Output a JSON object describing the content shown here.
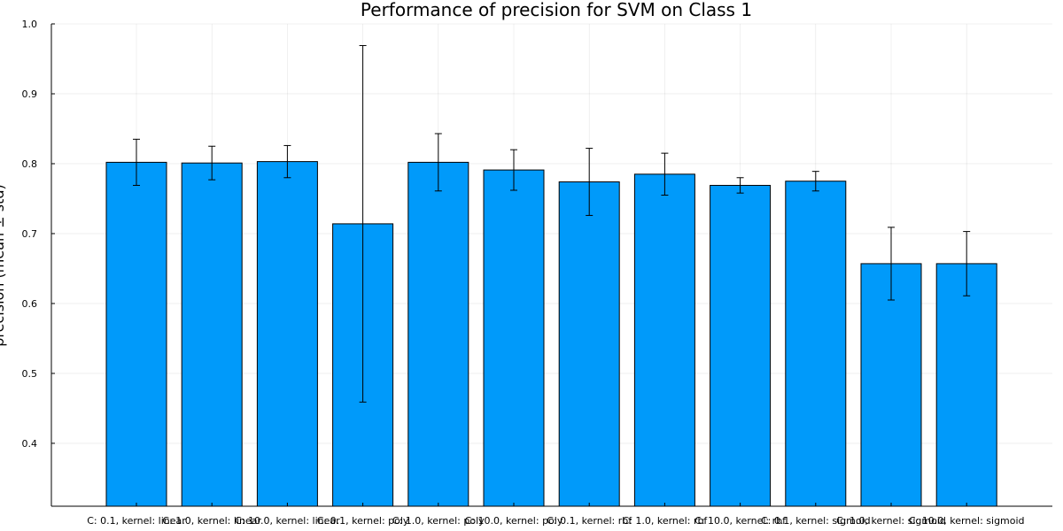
{
  "chart_data": {
    "type": "bar",
    "title": "Performance of precision for SVM on Class 1",
    "xlabel": "",
    "ylabel": "precision (mean ± std)",
    "ylim": [
      0.31,
      1.0
    ],
    "yticks": [
      0.4,
      0.5,
      0.6,
      0.7,
      0.8,
      0.9,
      1.0
    ],
    "ytick_labels": [
      "0.4",
      "0.5",
      "0.6",
      "0.7",
      "0.8",
      "0.9",
      "1.0"
    ],
    "grid": true,
    "bar_color": "#009AFA",
    "categories": [
      "C: 0.1, kernel: linear",
      "C: 1.0, kernel: linear",
      "C: 10.0, kernel: linear",
      "C: 0.1, kernel: poly",
      "C: 1.0, kernel: poly",
      "C: 10.0, kernel: poly",
      "C: 0.1, kernel: rbf",
      "C: 1.0, kernel: rbf",
      "C: 10.0, kernel: rbf",
      "C: 0.1, kernel: sigmoid",
      "C: 1.0, kernel: sigmoid",
      "C: 10.0, kernel: sigmoid"
    ],
    "values": [
      0.802,
      0.801,
      0.803,
      0.714,
      0.802,
      0.791,
      0.774,
      0.785,
      0.769,
      0.775,
      0.657,
      0.657
    ],
    "errors": [
      0.033,
      0.024,
      0.023,
      0.255,
      0.041,
      0.029,
      0.048,
      0.03,
      0.011,
      0.014,
      0.052,
      0.046
    ]
  }
}
